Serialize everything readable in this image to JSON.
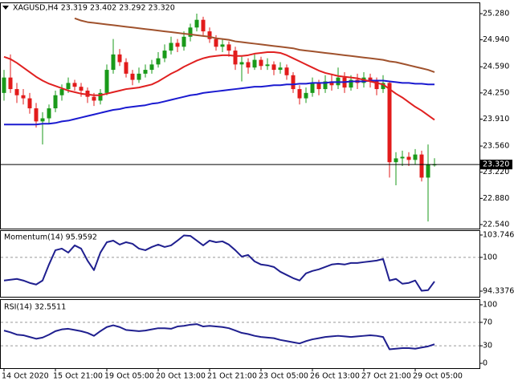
{
  "chart_data": [
    {
      "type": "candlestick",
      "title": "XAGUSD,H4 23.319 23.402 23.292 23.320",
      "categories": [
        "14 Oct 2020",
        null,
        null,
        null,
        null,
        null,
        null,
        null,
        "15 Oct 21:00",
        null,
        null,
        null,
        null,
        null,
        null,
        null,
        "19 Oct 05:00",
        null,
        null,
        null,
        null,
        null,
        null,
        null,
        "20 Oct 13:00",
        null,
        null,
        null,
        null,
        null,
        null,
        null,
        "21 Oct 21:00",
        null,
        null,
        null,
        null,
        null,
        null,
        null,
        "23 Oct 05:00",
        null,
        null,
        null,
        null,
        null,
        null,
        null,
        "26 Oct 13:00",
        null,
        null,
        null,
        null,
        null,
        null,
        null,
        "27 Oct 21:00",
        null,
        null,
        null,
        null,
        null,
        null,
        null,
        "29 Oct 05:00",
        null,
        null,
        null
      ],
      "open": [
        24.25,
        24.45,
        24.3,
        24.22,
        24.18,
        24.05,
        23.88,
        23.92,
        24.05,
        24.22,
        24.3,
        24.38,
        24.33,
        24.28,
        24.2,
        24.15,
        24.25,
        24.55,
        24.75,
        24.65,
        24.5,
        24.42,
        24.5,
        24.55,
        24.62,
        24.7,
        24.8,
        24.9,
        24.85,
        24.98,
        25.1,
        25.2,
        25.05,
        24.95,
        24.85,
        24.88,
        24.8,
        24.62,
        24.65,
        24.58,
        24.68,
        24.6,
        24.62,
        24.55,
        24.58,
        24.48,
        24.3,
        24.18,
        24.25,
        24.38,
        24.3,
        24.4,
        24.35,
        24.45,
        24.32,
        24.42,
        24.38,
        24.45,
        24.4,
        24.3,
        24.38,
        23.35,
        23.4,
        23.42,
        23.38,
        23.45,
        23.15,
        23.319
      ],
      "high": [
        24.55,
        24.75,
        24.38,
        24.3,
        24.25,
        24.12,
        24.0,
        24.1,
        24.28,
        24.36,
        24.45,
        24.42,
        24.38,
        24.32,
        24.25,
        24.3,
        24.62,
        24.95,
        24.82,
        24.7,
        24.55,
        24.58,
        24.62,
        24.68,
        24.78,
        24.88,
        24.98,
        24.95,
        25.05,
        25.15,
        25.28,
        25.24,
        25.1,
        25.0,
        24.95,
        24.92,
        24.85,
        24.72,
        24.7,
        24.75,
        24.72,
        24.7,
        24.66,
        24.65,
        24.62,
        24.52,
        24.35,
        24.32,
        24.45,
        24.42,
        24.48,
        24.5,
        24.58,
        24.52,
        24.48,
        24.5,
        24.52,
        24.5,
        24.45,
        24.48,
        24.4,
        23.48,
        23.5,
        23.48,
        23.52,
        23.5,
        23.58,
        23.402
      ],
      "low": [
        24.15,
        24.25,
        24.12,
        24.1,
        23.98,
        23.8,
        23.58,
        23.85,
        24.0,
        24.15,
        24.25,
        24.28,
        24.2,
        24.12,
        24.08,
        24.1,
        24.22,
        24.5,
        24.6,
        24.45,
        24.35,
        24.38,
        24.45,
        24.5,
        24.58,
        24.65,
        24.75,
        24.78,
        24.8,
        24.92,
        25.05,
        25.0,
        24.9,
        24.8,
        24.78,
        24.72,
        24.55,
        24.4,
        24.5,
        24.55,
        24.55,
        24.55,
        24.48,
        24.5,
        24.42,
        24.25,
        24.1,
        24.12,
        24.2,
        24.22,
        24.25,
        24.28,
        24.3,
        24.25,
        24.28,
        24.3,
        24.32,
        24.32,
        24.22,
        24.25,
        23.15,
        23.05,
        23.3,
        23.3,
        23.32,
        23.1,
        22.58,
        23.292
      ],
      "close": [
        24.45,
        24.3,
        24.22,
        24.18,
        24.05,
        23.88,
        23.92,
        24.05,
        24.22,
        24.3,
        24.38,
        24.33,
        24.28,
        24.2,
        24.15,
        24.25,
        24.55,
        24.75,
        24.65,
        24.5,
        24.42,
        24.5,
        24.55,
        24.62,
        24.7,
        24.8,
        24.9,
        24.85,
        24.98,
        25.1,
        25.2,
        25.05,
        24.95,
        24.85,
        24.88,
        24.8,
        24.62,
        24.65,
        24.58,
        24.68,
        24.6,
        24.62,
        24.55,
        24.58,
        24.48,
        24.3,
        24.18,
        24.25,
        24.38,
        24.3,
        24.4,
        24.35,
        24.45,
        24.32,
        24.42,
        24.38,
        24.45,
        24.4,
        24.3,
        24.38,
        23.35,
        23.4,
        23.42,
        23.38,
        23.45,
        23.15,
        23.32,
        23.32
      ],
      "up_color": "#1a9a1a",
      "down_color": "#e21b1b",
      "series": [
        {
          "color": "#a0522d",
          "values": [
            null,
            null,
            null,
            null,
            null,
            null,
            null,
            null,
            null,
            null,
            null,
            25.22,
            25.19,
            25.17,
            25.16,
            25.15,
            25.14,
            25.13,
            25.12,
            25.11,
            25.1,
            25.09,
            25.08,
            25.07,
            25.06,
            25.05,
            25.04,
            25.03,
            25.02,
            25.01,
            25.0,
            24.99,
            24.98,
            24.96,
            24.95,
            24.94,
            24.92,
            24.91,
            24.9,
            24.89,
            24.88,
            24.87,
            24.86,
            24.85,
            24.84,
            24.83,
            24.81,
            24.8,
            24.79,
            24.78,
            24.77,
            24.76,
            24.75,
            24.74,
            24.73,
            24.72,
            24.71,
            24.7,
            24.69,
            24.68,
            24.66,
            24.65,
            24.63,
            24.61,
            24.59,
            24.57,
            24.55,
            24.52
          ]
        },
        {
          "color": "#1a1ad0",
          "values": [
            23.84,
            23.84,
            23.84,
            23.84,
            23.84,
            23.84,
            23.85,
            23.85,
            23.86,
            23.88,
            23.89,
            23.91,
            23.93,
            23.95,
            23.97,
            23.99,
            24.01,
            24.03,
            24.04,
            24.06,
            24.07,
            24.08,
            24.09,
            24.11,
            24.12,
            24.14,
            24.16,
            24.18,
            24.2,
            24.22,
            24.23,
            24.25,
            24.26,
            24.27,
            24.28,
            24.29,
            24.3,
            24.31,
            24.32,
            24.33,
            24.33,
            24.34,
            24.35,
            24.35,
            24.36,
            24.36,
            24.37,
            24.37,
            24.38,
            24.38,
            24.38,
            24.39,
            24.39,
            24.39,
            24.4,
            24.4,
            24.4,
            24.41,
            24.41,
            24.41,
            24.4,
            24.39,
            24.38,
            24.38,
            24.37,
            24.37,
            24.36,
            24.36
          ]
        },
        {
          "color": "#e02020",
          "values": [
            24.72,
            24.69,
            24.64,
            24.58,
            24.52,
            24.46,
            24.41,
            24.37,
            24.34,
            24.31,
            24.28,
            24.26,
            24.24,
            24.23,
            24.22,
            24.22,
            24.24,
            24.26,
            24.28,
            24.3,
            24.31,
            24.32,
            24.34,
            24.36,
            24.4,
            24.45,
            24.5,
            24.54,
            24.59,
            24.63,
            24.67,
            24.7,
            24.72,
            24.73,
            24.74,
            24.74,
            24.73,
            24.73,
            24.74,
            24.76,
            24.77,
            24.78,
            24.78,
            24.77,
            24.74,
            24.7,
            24.66,
            24.62,
            24.58,
            24.54,
            24.51,
            24.49,
            24.47,
            24.46,
            24.45,
            24.44,
            24.42,
            24.4,
            24.38,
            24.36,
            24.3,
            24.24,
            24.19,
            24.13,
            24.07,
            24.02,
            23.96,
            23.9
          ]
        }
      ],
      "ylim": [
        22.5,
        25.4
      ],
      "yticks": [
        {
          "value": 25.28,
          "label": "25.280"
        },
        {
          "value": 24.94,
          "label": "24.940"
        },
        {
          "value": 24.59,
          "label": "24.590"
        },
        {
          "value": 24.25,
          "label": "24.250"
        },
        {
          "value": 23.91,
          "label": "23.910"
        },
        {
          "value": 23.56,
          "label": "23.560"
        },
        {
          "value": 23.22,
          "label": "23.220"
        },
        {
          "value": 22.88,
          "label": "22.880"
        },
        {
          "value": 22.54,
          "label": "22.540"
        }
      ],
      "last_price": {
        "value": 23.32,
        "label": "23.320"
      }
    },
    {
      "type": "line",
      "title": "Momentum(14) 95.9592",
      "series": [
        {
          "color": "#1f1f8f",
          "values": [
            96.12,
            96.25,
            96.39,
            96.12,
            95.72,
            95.45,
            96.12,
            98.8,
            101.2,
            101.47,
            100.8,
            102.01,
            101.47,
            99.46,
            97.86,
            100.8,
            102.54,
            102.81,
            102.14,
            102.54,
            102.28,
            101.47,
            101.2,
            101.74,
            102.14,
            101.74,
            102.01,
            102.81,
            103.68,
            103.6,
            102.81,
            102.01,
            102.81,
            102.54,
            102.68,
            102.14,
            101.2,
            100.13,
            100.4,
            99.33,
            98.8,
            98.66,
            98.39,
            97.59,
            97.05,
            96.52,
            96.12,
            97.32,
            97.72,
            97.99,
            98.39,
            98.8,
            98.93,
            98.8,
            99.06,
            99.06,
            99.2,
            99.33,
            99.46,
            99.73,
            96.12,
            96.39,
            95.58,
            95.72,
            96.12,
            94.4,
            94.5,
            95.9592
          ]
        }
      ],
      "ylim": [
        94.3376,
        103.7464
      ],
      "yticks": [
        103.7464,
        100,
        94.3376
      ],
      "levels": [
        100
      ]
    },
    {
      "type": "line",
      "title": "RSI(14) 32.5511",
      "series": [
        {
          "color": "#1f1f8f",
          "values": [
            56,
            53,
            49,
            48,
            45,
            42,
            44,
            49,
            55,
            58,
            59,
            57,
            55,
            52,
            47,
            55,
            62,
            65,
            62,
            57,
            56,
            55,
            56,
            58,
            60,
            60,
            59,
            63,
            64,
            66,
            67,
            63,
            64,
            63,
            62,
            60,
            56,
            52,
            50,
            47,
            45,
            44,
            43,
            40,
            38,
            36,
            34,
            38,
            41,
            43,
            45,
            46,
            47,
            46,
            45,
            46,
            47,
            48,
            47,
            45,
            24,
            25,
            26,
            26,
            25,
            27,
            29,
            32.5511
          ]
        }
      ],
      "ylim": [
        0,
        100
      ],
      "yticks": [
        100,
        70,
        30,
        0
      ],
      "levels": [
        70,
        30
      ]
    }
  ]
}
